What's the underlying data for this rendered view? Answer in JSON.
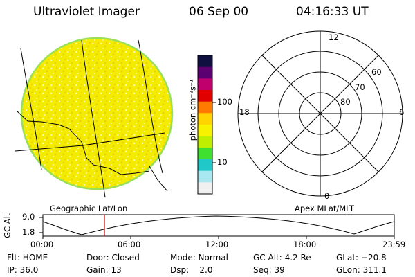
{
  "header": {
    "instrument": "Ultraviolet Imager",
    "date": "06 Sep 00",
    "time": "04:16:33 UT"
  },
  "left_panel": {
    "projection_label": "Geographic Lat/Lon"
  },
  "colorbar": {
    "label": "photon cm⁻²s⁻¹",
    "ticks": [
      "100",
      "10"
    ],
    "scale": "log",
    "colors": [
      "#101040",
      "#5a0070",
      "#c0006c",
      "#e00000",
      "#ff7a00",
      "#ffd400",
      "#f6f200",
      "#c0ee00",
      "#40e030",
      "#20c8c8",
      "#a8e8f0",
      "#f0f0f0"
    ]
  },
  "polar_plot": {
    "projection_label": "Apex MLat/MLT",
    "mlt_labels": {
      "top": "12",
      "bottom": "0",
      "left": "18",
      "right": "6"
    },
    "mlat_labels": [
      "60",
      "70",
      "80"
    ]
  },
  "altitude_plot": {
    "ylabel": "GC Alt",
    "yticks": [
      "9.0",
      "1.8"
    ],
    "xticks": [
      "00:00",
      "06:00",
      "12:00",
      "18:00",
      "23:59"
    ]
  },
  "info": {
    "flt": "Flt: HOME",
    "ip": "IP: 36.0",
    "door": "Door: Closed",
    "gain": "Gain: 13",
    "mode": "Mode: Normal",
    "dsp": "Dsp:    2.0",
    "gcalt": "GC Alt: 4.2 Re",
    "seq": "Seq: 39",
    "glat": "GLat: −20.8",
    "glon": "GLon: 311.1"
  },
  "colors": {
    "disk_yellow": "#f4ec00",
    "disk_edge": "#9adf5a",
    "marker_red": "#cc0000"
  }
}
